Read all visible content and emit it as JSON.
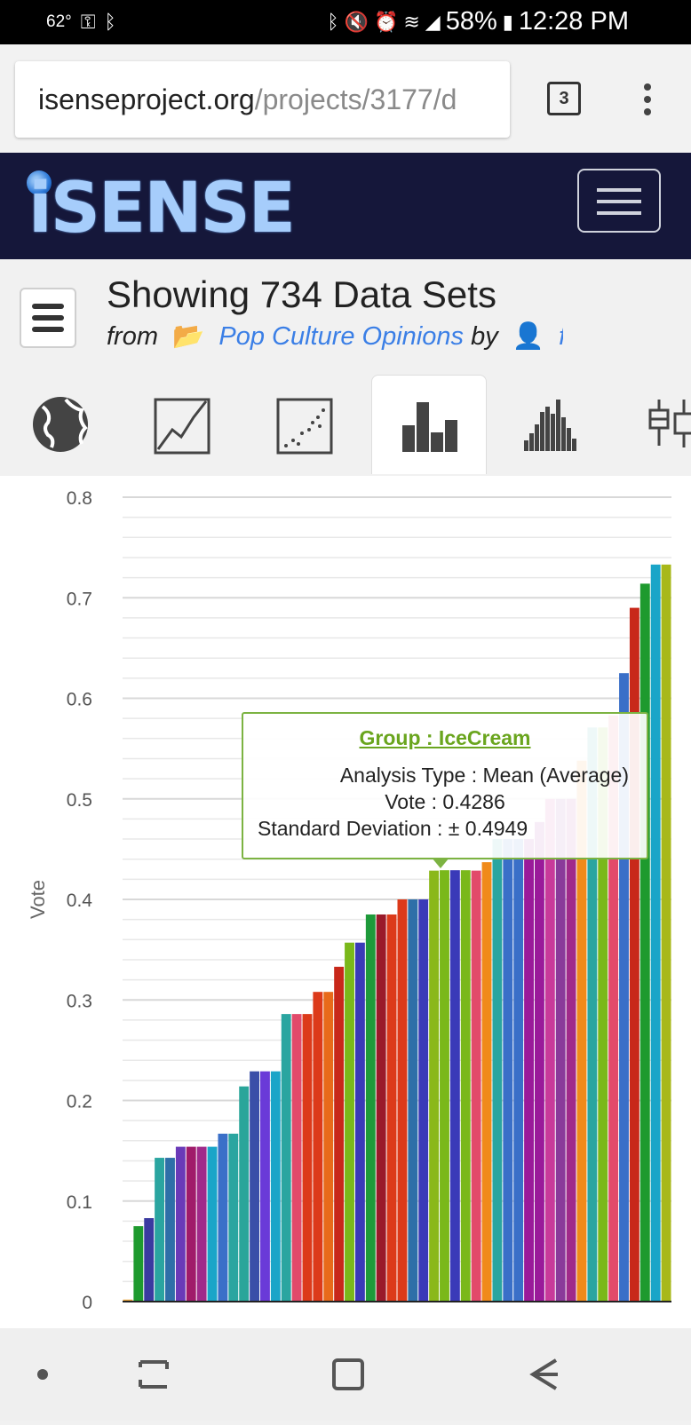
{
  "status_bar": {
    "temperature": "62°",
    "battery": "58%",
    "time": "12:28 PM"
  },
  "browser": {
    "url_domain": "isenseproject.org",
    "url_path": "/projects/3177/d",
    "tab_count": "3"
  },
  "brand": {
    "logo_text": "iSENSE"
  },
  "header": {
    "title": "Showing 734 Data Sets",
    "from_label": "from",
    "project_name": "Pop Culture Opinions",
    "by_label": "by",
    "owner_name": "fred"
  },
  "vis_tabs": [
    {
      "icon": "globe-icon"
    },
    {
      "icon": "line-chart-icon"
    },
    {
      "icon": "scatter-icon"
    },
    {
      "icon": "bar-chart-icon",
      "active": true
    },
    {
      "icon": "histogram-icon"
    },
    {
      "icon": "boxplot-icon"
    }
  ],
  "chart_data": {
    "type": "bar",
    "ylabel": "Vote",
    "ylim": [
      0,
      0.8
    ],
    "yticks": [
      "0",
      "0.1",
      "0.2",
      "0.3",
      "0.4",
      "0.5",
      "0.6",
      "0.7",
      "0.8"
    ],
    "grid": true,
    "values": [
      0.002,
      0.075,
      0.083,
      0.143,
      0.143,
      0.154,
      0.154,
      0.154,
      0.154,
      0.167,
      0.167,
      0.214,
      0.229,
      0.229,
      0.229,
      0.286,
      0.286,
      0.286,
      0.308,
      0.308,
      0.333,
      0.357,
      0.357,
      0.385,
      0.385,
      0.385,
      0.4,
      0.4,
      0.4,
      0.4286,
      0.429,
      0.429,
      0.429,
      0.4286,
      0.437,
      0.46,
      0.46,
      0.46,
      0.46,
      0.477,
      0.5,
      0.5,
      0.5,
      0.538,
      0.571,
      0.571,
      0.583,
      0.625,
      0.69,
      0.714,
      0.733,
      0.733
    ],
    "colors": [
      "#e8a33a",
      "#1e9a2e",
      "#3a3aa0",
      "#2aa5a0",
      "#2e6fa8",
      "#6a3ab8",
      "#a01b6a",
      "#a02a8a",
      "#1aa5c8",
      "#3a6fc8",
      "#2aa5a0",
      "#2aa59a",
      "#3a4fa8",
      "#6a3ad8",
      "#1aa5c8",
      "#2aa5a0",
      "#e24a6a",
      "#dc3a1a",
      "#dc3a1a",
      "#e86a1a",
      "#c8281a",
      "#7ab81a",
      "#3a3ab8",
      "#1e9a3a",
      "#9a1a2a",
      "#dc3a1a",
      "#dc3a1a",
      "#2e6fa8",
      "#3a3ab8",
      "#8ab81a",
      "#7ab81a",
      "#3a3ab8",
      "#7ab81a",
      "#e24a6a",
      "#f08a1a",
      "#2aa5a0",
      "#3a6fc8",
      "#3a6fc8",
      "#9a1a9a",
      "#9a1a9a",
      "#c83a9a",
      "#8a3a9a",
      "#a02a8a",
      "#f08a1a",
      "#2aa5a0",
      "#7ab81a",
      "#e24a6a",
      "#3a6fc8",
      "#c8281a",
      "#1e9a2e",
      "#1aa5c8",
      "#a8b81a"
    ]
  },
  "tooltip": {
    "title": "Group : IceCream",
    "line1": "Analysis Type : Mean (Average)",
    "line2": "Vote : 0.4286",
    "line3": "Standard Deviation : ± 0.4949"
  }
}
